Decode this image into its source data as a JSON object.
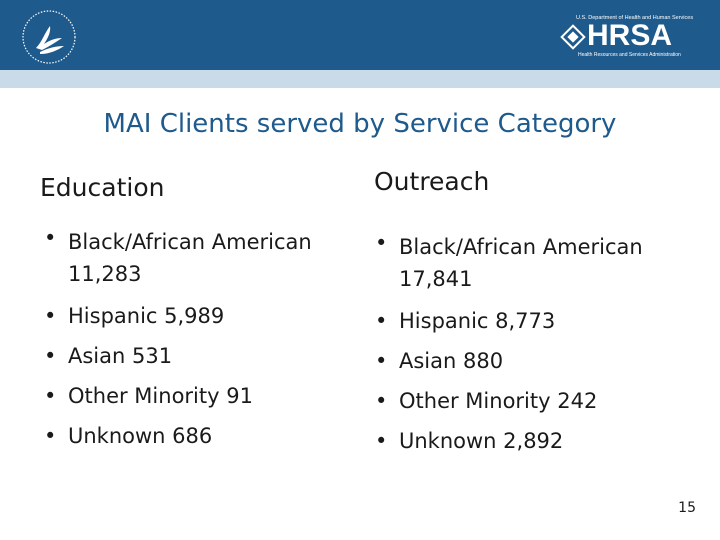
{
  "header": {
    "hrsa": {
      "top_text": "U.S. Department of Health and Human Services",
      "name": "HRSA",
      "bottom_text": "Health Resources and Services Administration"
    },
    "colors": {
      "banner": "#1f5a8c",
      "strip": "#c9dbe9"
    }
  },
  "slide": {
    "title": "MAI Clients served by Service Category",
    "number": "15"
  },
  "columns": [
    {
      "heading": "Education",
      "items": [
        {
          "label": "Black/African American",
          "value": "11,283"
        },
        {
          "label": "Hispanic 5,989"
        },
        {
          "label": "Asian 531"
        },
        {
          "label": "Other Minority 91"
        },
        {
          "label": "Unknown 686"
        }
      ]
    },
    {
      "heading": "Outreach",
      "items": [
        {
          "label": "Black/African American",
          "value": "17,841"
        },
        {
          "label": "Hispanic 8,773"
        },
        {
          "label": "Asian 880"
        },
        {
          "label": "Other Minority 242"
        },
        {
          "label": "Unknown 2,892"
        }
      ]
    }
  ],
  "icons": {
    "bullet": "•",
    "seal": "hhs-eagle-seal-icon",
    "hrsa_emblem": "hrsa-diamond-emblem-icon"
  }
}
